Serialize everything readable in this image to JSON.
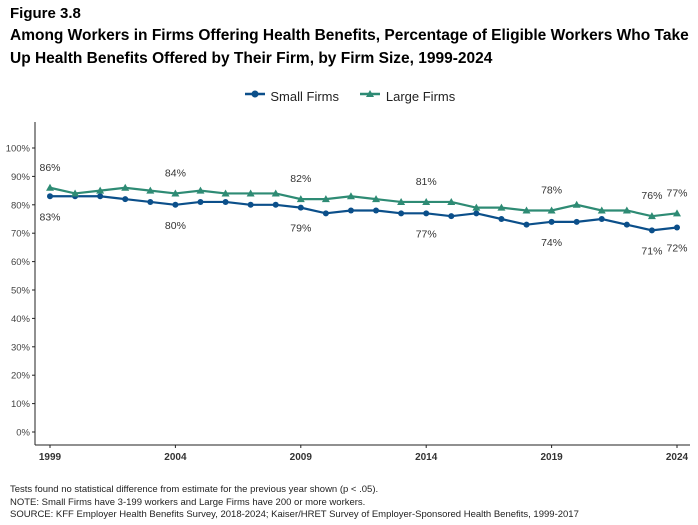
{
  "figure_label": "Figure 3.8",
  "title": "Among Workers in Firms Offering Health Benefits, Percentage of Eligible Workers Who Take Up Health Benefits Offered by Their Firm, by Firm Size, 1999-2024",
  "notes": [
    "Tests found no statistical difference from estimate for the previous year shown (p < .05).",
    "NOTE: Small Firms have 3-199 workers and Large Firms have 200 or more workers.",
    "SOURCE: KFF Employer Health Benefits Survey, 2018-2024; Kaiser/HRET Survey of Employer-Sponsored Health Benefits, 1999-2017"
  ],
  "chart_data": {
    "type": "line",
    "x": [
      1999,
      2000,
      2001,
      2002,
      2003,
      2004,
      2005,
      2006,
      2007,
      2008,
      2009,
      2010,
      2011,
      2012,
      2013,
      2014,
      2015,
      2016,
      2017,
      2018,
      2019,
      2020,
      2021,
      2022,
      2023,
      2024
    ],
    "x_tick_labels": [
      "1999",
      "2004",
      "2009",
      "2014",
      "2019",
      "2024"
    ],
    "y_tick_labels": [
      "0%",
      "10%",
      "20%",
      "30%",
      "40%",
      "50%",
      "60%",
      "70%",
      "80%",
      "90%",
      "100%"
    ],
    "ylim": [
      0,
      100
    ],
    "grid": false,
    "legend_position": "top",
    "series": [
      {
        "name": "Small Firms",
        "color": "#0b4f8a",
        "marker": "circle",
        "values": [
          83,
          83,
          83,
          82,
          81,
          80,
          81,
          81,
          80,
          80,
          79,
          77,
          78,
          78,
          77,
          77,
          76,
          77,
          75,
          73,
          74,
          74,
          75,
          73,
          71,
          72
        ],
        "labels": {
          "1999": "83%",
          "2004": "80%",
          "2009": "79%",
          "2014": "77%",
          "2019": "74%",
          "2023": "71%",
          "2024": "72%"
        }
      },
      {
        "name": "Large Firms",
        "color": "#2e8b74",
        "marker": "triangle",
        "values": [
          86,
          84,
          85,
          86,
          85,
          84,
          85,
          84,
          84,
          84,
          82,
          82,
          83,
          82,
          81,
          81,
          81,
          79,
          79,
          78,
          78,
          80,
          78,
          78,
          76,
          77
        ],
        "labels": {
          "1999": "86%",
          "2004": "84%",
          "2009": "82%",
          "2014": "81%",
          "2019": "78%",
          "2023": "76%",
          "2024": "77%"
        }
      }
    ]
  }
}
